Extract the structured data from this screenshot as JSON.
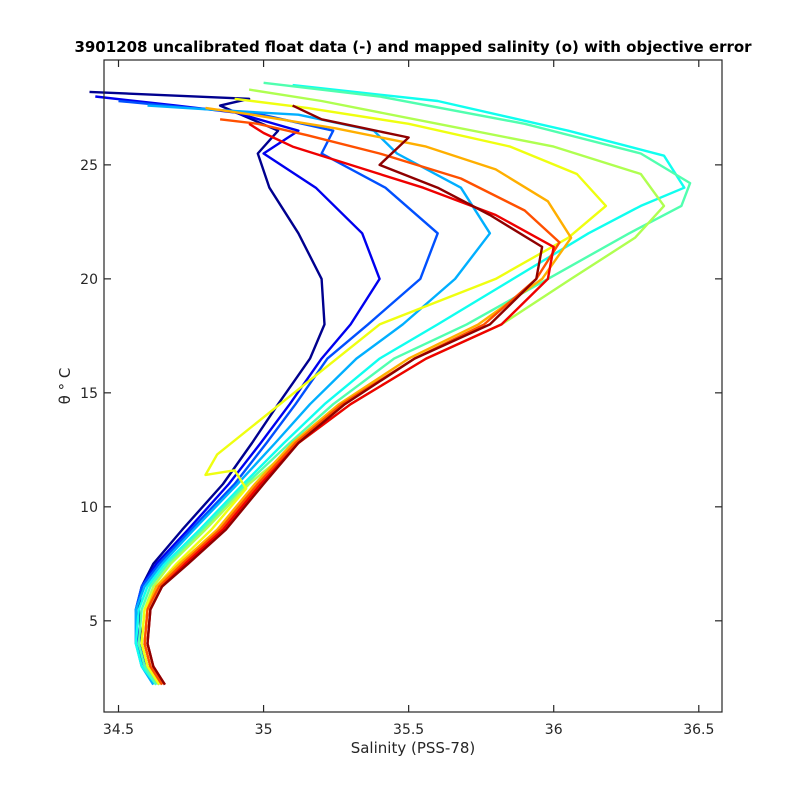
{
  "chart_data": {
    "type": "line",
    "title": "3901208 uncalibrated float data (-) and mapped salinity (o) with objective error",
    "xlabel": "Salinity (PSS-78)",
    "ylabel": "θ ° C",
    "xlim": [
      34.45,
      36.58
    ],
    "ylim": [
      1.0,
      29.6
    ],
    "xticks": [
      "34.5",
      "35",
      "35.5",
      "36",
      "36.5"
    ],
    "yticks": [
      "5",
      "10",
      "15",
      "20",
      "25"
    ],
    "grid": false,
    "legend": "none",
    "colormap": "jet (blue = early profiles, red = late profiles)",
    "series": [
      {
        "color": "#00008F",
        "x": [
          34.64,
          34.6,
          34.58,
          34.57,
          34.58,
          34.62,
          34.72,
          34.86,
          34.96,
          35.05,
          35.16,
          35.21,
          35.2,
          35.12,
          35.02,
          34.98,
          35.05,
          34.85,
          34.95,
          34.4
        ],
        "y": [
          2.2,
          3.0,
          4.0,
          5.5,
          6.5,
          7.5,
          9.0,
          11.0,
          12.8,
          14.5,
          16.5,
          18.0,
          20.0,
          22.0,
          24.0,
          25.5,
          26.5,
          27.6,
          27.9,
          28.2
        ]
      },
      {
        "color": "#0000EF",
        "x": [
          34.64,
          34.6,
          34.57,
          34.56,
          34.58,
          34.63,
          34.74,
          34.88,
          34.99,
          35.09,
          35.2,
          35.3,
          35.4,
          35.34,
          35.18,
          35.0,
          35.12,
          34.9,
          34.7,
          34.42
        ],
        "y": [
          2.2,
          3.0,
          4.0,
          5.5,
          6.5,
          7.5,
          9.0,
          11.0,
          12.8,
          14.5,
          16.5,
          18.0,
          20.0,
          22.0,
          24.0,
          25.5,
          26.5,
          27.3,
          27.6,
          28.0
        ]
      },
      {
        "color": "#0050FF",
        "x": [
          34.63,
          34.59,
          34.56,
          34.56,
          34.58,
          34.64,
          34.75,
          34.9,
          35.01,
          35.11,
          35.22,
          35.36,
          35.54,
          35.6,
          35.42,
          35.2,
          35.24,
          34.96,
          34.75,
          34.5
        ],
        "y": [
          2.2,
          3.0,
          4.0,
          5.5,
          6.5,
          7.5,
          9.0,
          11.0,
          12.8,
          14.5,
          16.5,
          18.0,
          20.0,
          22.0,
          24.0,
          25.5,
          26.5,
          27.3,
          27.5,
          27.8
        ]
      },
      {
        "color": "#00AFFF",
        "x": [
          34.62,
          34.58,
          34.56,
          34.56,
          34.59,
          34.65,
          34.76,
          34.91,
          35.04,
          35.16,
          35.32,
          35.48,
          35.66,
          35.78,
          35.68,
          35.46,
          35.38,
          35.12,
          34.85,
          34.6
        ],
        "y": [
          2.2,
          3.0,
          4.0,
          5.5,
          6.5,
          7.5,
          9.0,
          11.0,
          12.8,
          14.5,
          16.5,
          18.0,
          20.0,
          22.0,
          24.0,
          25.5,
          26.5,
          27.2,
          27.4,
          27.6
        ]
      },
      {
        "color": "#10FFEF",
        "x": [
          34.63,
          34.58,
          34.56,
          34.57,
          34.6,
          34.66,
          34.78,
          34.93,
          35.07,
          35.21,
          35.4,
          35.6,
          35.86,
          36.12,
          36.3,
          36.45,
          36.38,
          36.05,
          35.6,
          35.1
        ],
        "y": [
          2.2,
          3.0,
          4.0,
          5.5,
          6.5,
          7.5,
          9.0,
          11.0,
          12.8,
          14.5,
          16.5,
          18.0,
          20.0,
          22.0,
          23.2,
          24.0,
          25.4,
          26.5,
          27.8,
          28.5
        ]
      },
      {
        "color": "#50FFAF",
        "x": [
          34.63,
          34.59,
          34.57,
          34.58,
          34.61,
          34.67,
          34.79,
          34.94,
          35.09,
          35.24,
          35.45,
          35.7,
          35.98,
          36.26,
          36.44,
          36.47,
          36.3,
          35.9,
          35.4,
          35.0
        ],
        "y": [
          2.2,
          3.0,
          4.0,
          5.5,
          6.5,
          7.5,
          9.0,
          11.0,
          12.8,
          14.5,
          16.5,
          18.0,
          20.0,
          22.0,
          23.2,
          24.2,
          25.5,
          26.8,
          28.0,
          28.6
        ]
      },
      {
        "color": "#AFFF50",
        "x": [
          34.64,
          34.6,
          34.58,
          34.59,
          34.62,
          34.68,
          34.8,
          34.95,
          35.12,
          35.3,
          35.56,
          35.82,
          36.06,
          36.28,
          36.38,
          36.3,
          36.0,
          35.6,
          35.2,
          34.95
        ],
        "y": [
          2.2,
          3.0,
          4.0,
          5.5,
          6.5,
          7.5,
          9.0,
          11.0,
          12.8,
          14.5,
          16.5,
          18.0,
          20.0,
          21.8,
          23.2,
          24.6,
          25.8,
          26.8,
          27.8,
          28.3
        ]
      },
      {
        "color": "#EFFF10",
        "x": [
          34.64,
          34.6,
          34.58,
          34.59,
          34.63,
          34.7,
          34.82,
          34.94,
          34.9,
          34.8,
          34.84,
          35.4,
          35.8,
          36.05,
          36.18,
          36.08,
          35.85,
          35.5,
          35.15,
          34.9
        ],
        "y": [
          2.2,
          3.0,
          4.0,
          5.5,
          6.5,
          7.5,
          9.0,
          10.8,
          11.6,
          11.4,
          12.3,
          18.0,
          20.0,
          21.8,
          23.2,
          24.6,
          25.8,
          26.8,
          27.5,
          27.9
        ]
      },
      {
        "color": "#FFAF00",
        "x": [
          34.65,
          34.61,
          34.59,
          34.6,
          34.63,
          34.71,
          34.84,
          34.97,
          35.1,
          35.26,
          35.5,
          35.74,
          35.96,
          36.06,
          35.98,
          35.8,
          35.56,
          35.25,
          34.96,
          34.8
        ],
        "y": [
          2.2,
          3.0,
          4.0,
          5.5,
          6.5,
          7.5,
          9.0,
          11.0,
          12.8,
          14.5,
          16.5,
          18.0,
          20.0,
          21.8,
          23.4,
          24.8,
          25.8,
          26.6,
          27.2,
          27.5
        ]
      },
      {
        "color": "#FF5000",
        "x": [
          34.65,
          34.61,
          34.59,
          34.6,
          34.64,
          34.72,
          34.85,
          34.98,
          35.11,
          35.27,
          35.52,
          35.76,
          35.94,
          36.02,
          35.9,
          35.68,
          35.4,
          35.15,
          34.98,
          34.85
        ],
        "y": [
          2.2,
          3.0,
          4.0,
          5.5,
          6.5,
          7.5,
          9.0,
          11.0,
          12.8,
          14.5,
          16.5,
          18.0,
          20.0,
          21.6,
          23.0,
          24.4,
          25.5,
          26.3,
          26.8,
          27.0
        ]
      },
      {
        "color": "#EF0000",
        "x": [
          34.66,
          34.62,
          34.6,
          34.61,
          34.65,
          34.73,
          34.86,
          34.99,
          35.12,
          35.3,
          35.56,
          35.82,
          35.98,
          36.0,
          35.8,
          35.55,
          35.3,
          35.1,
          35.0,
          34.95
        ],
        "y": [
          2.2,
          3.0,
          4.0,
          5.5,
          6.5,
          7.5,
          9.0,
          11.0,
          12.8,
          14.5,
          16.5,
          18.0,
          20.0,
          21.4,
          22.8,
          24.0,
          25.0,
          25.8,
          26.4,
          26.8
        ]
      },
      {
        "color": "#8F0000",
        "x": [
          34.66,
          34.62,
          34.6,
          34.61,
          34.65,
          34.74,
          34.87,
          35.0,
          35.12,
          35.28,
          35.52,
          35.78,
          35.94,
          35.96,
          35.78,
          35.6,
          35.4,
          35.5,
          35.2,
          35.1
        ],
        "y": [
          2.2,
          3.0,
          4.0,
          5.5,
          6.5,
          7.5,
          9.0,
          11.0,
          12.8,
          14.5,
          16.5,
          18.0,
          20.0,
          21.4,
          22.8,
          24.0,
          25.0,
          26.2,
          27.0,
          27.6
        ]
      }
    ]
  }
}
